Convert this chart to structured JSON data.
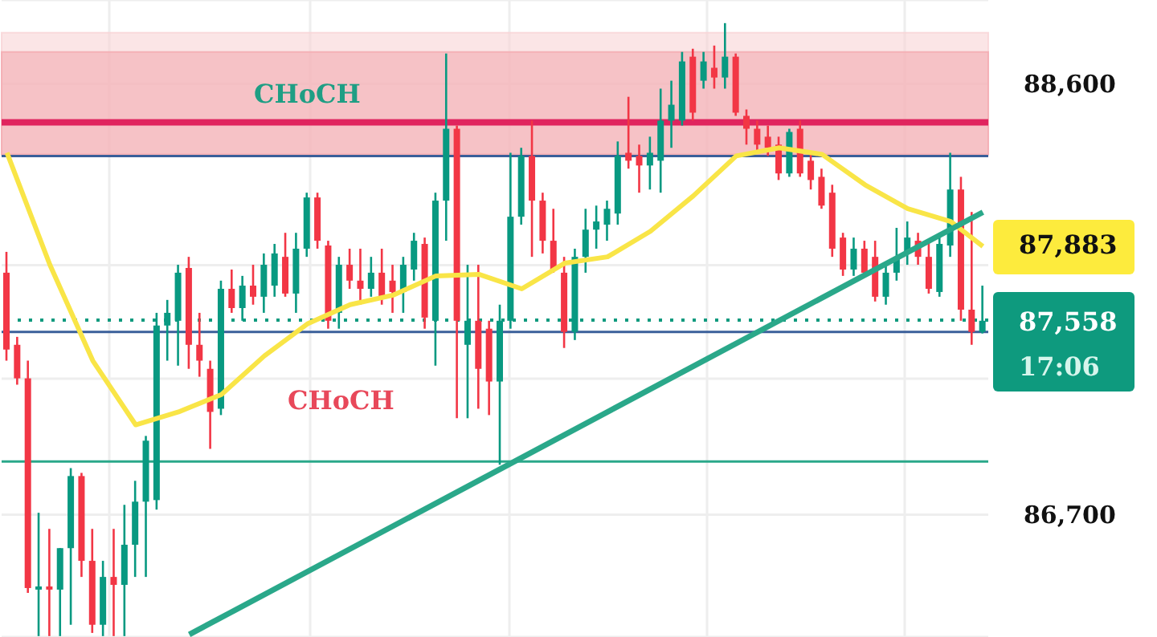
{
  "chart_data": {
    "type": "candlestick",
    "categories": [
      null,
      null,
      null,
      null,
      null,
      null,
      null,
      null,
      null,
      null,
      null,
      null,
      null,
      null,
      null,
      null,
      null,
      null,
      null,
      null,
      null,
      null,
      null,
      null,
      null,
      null,
      null,
      null,
      null,
      null,
      null,
      null,
      null,
      null,
      null,
      null,
      null,
      null,
      null,
      null,
      null,
      null,
      null,
      null,
      null,
      null,
      null,
      null,
      null,
      null,
      null,
      null,
      null,
      null,
      null,
      null,
      null,
      null,
      null,
      null,
      null,
      null,
      null,
      null,
      null,
      null,
      null,
      null,
      null,
      null,
      null,
      null,
      null,
      null,
      null,
      null,
      null,
      null,
      null,
      null,
      null,
      null,
      null,
      null,
      null,
      null,
      null,
      null,
      null,
      null,
      null,
      null
    ],
    "ohlc": [
      [
        87767,
        87859,
        87379,
        87428
      ],
      [
        87449,
        87484,
        87273,
        87301
      ],
      [
        87301,
        87379,
        86355,
        86376
      ],
      [
        86369,
        86708,
        86164,
        86383
      ],
      [
        86383,
        86637,
        86164,
        86369
      ],
      [
        86369,
        86552,
        86164,
        86552
      ],
      [
        86552,
        86905,
        86214,
        86870
      ],
      [
        86870,
        86884,
        86425,
        86496
      ],
      [
        86496,
        86637,
        86178,
        86214
      ],
      [
        86214,
        86496,
        86164,
        86425
      ],
      [
        86425,
        86637,
        86164,
        86390
      ],
      [
        86390,
        86743,
        86164,
        86567
      ],
      [
        86567,
        86849,
        86425,
        86757
      ],
      [
        86757,
        87047,
        86425,
        87026
      ],
      [
        86764,
        87590,
        86722,
        87534
      ],
      [
        87534,
        87647,
        87379,
        87590
      ],
      [
        87555,
        87802,
        87357,
        87767
      ],
      [
        87788,
        87837,
        87343,
        87449
      ],
      [
        87449,
        87590,
        87308,
        87379
      ],
      [
        87343,
        87379,
        86990,
        87153
      ],
      [
        87167,
        87732,
        87139,
        87696
      ],
      [
        87696,
        87781,
        87590,
        87611
      ],
      [
        87611,
        87753,
        87555,
        87710
      ],
      [
        87710,
        87802,
        87626,
        87661
      ],
      [
        87661,
        87852,
        87590,
        87802
      ],
      [
        87710,
        87894,
        87661,
        87852
      ],
      [
        87837,
        87943,
        87661,
        87675
      ],
      [
        87675,
        87943,
        87590,
        87873
      ],
      [
        87873,
        88120,
        87837,
        88099
      ],
      [
        88099,
        88120,
        87873,
        87908
      ],
      [
        87887,
        87908,
        87520,
        87555
      ],
      [
        87590,
        87837,
        87520,
        87802
      ],
      [
        87802,
        87873,
        87696,
        87732
      ],
      [
        87732,
        87873,
        87626,
        87696
      ],
      [
        87696,
        87837,
        87661,
        87767
      ],
      [
        87767,
        87873,
        87626,
        87661
      ],
      [
        87732,
        87802,
        87590,
        87682
      ],
      [
        87682,
        87837,
        87590,
        87802
      ],
      [
        87781,
        87943,
        87732,
        87908
      ],
      [
        87894,
        87922,
        87520,
        87569
      ],
      [
        87555,
        88120,
        87357,
        88085
      ],
      [
        88085,
        88734,
        87908,
        88402
      ],
      [
        88402,
        88416,
        87125,
        87555
      ],
      [
        87449,
        87802,
        87125,
        87555
      ],
      [
        87555,
        87802,
        87167,
        87343
      ],
      [
        87520,
        87555,
        87139,
        87287
      ],
      [
        87287,
        87626,
        86920,
        87555
      ],
      [
        87555,
        88296,
        87520,
        88014
      ],
      [
        88014,
        88318,
        87979,
        88282
      ],
      [
        88282,
        88438,
        87837,
        88085
      ],
      [
        88085,
        88120,
        87852,
        87908
      ],
      [
        87908,
        88049,
        87767,
        87781
      ],
      [
        87767,
        87837,
        87435,
        87506
      ],
      [
        87506,
        87873,
        87470,
        87837
      ],
      [
        87837,
        88049,
        87767,
        87957
      ],
      [
        87957,
        88063,
        87873,
        87993
      ],
      [
        87979,
        88085,
        87908,
        88049
      ],
      [
        88028,
        88346,
        87979,
        88282
      ],
      [
        88296,
        88543,
        88226,
        88261
      ],
      [
        88282,
        88332,
        88120,
        88240
      ],
      [
        88240,
        88367,
        88134,
        88296
      ],
      [
        88261,
        88579,
        88120,
        88438
      ],
      [
        88438,
        88614,
        88318,
        88508
      ],
      [
        88438,
        88741,
        88416,
        88699
      ],
      [
        88720,
        88755,
        88438,
        88473
      ],
      [
        88614,
        88741,
        88579,
        88699
      ],
      [
        88671,
        88769,
        88579,
        88628
      ],
      [
        88628,
        88868,
        88579,
        88720
      ],
      [
        88720,
        88734,
        88459,
        88473
      ],
      [
        88459,
        88487,
        88332,
        88402
      ],
      [
        88402,
        88438,
        88296,
        88332
      ],
      [
        88367,
        88416,
        88282,
        88318
      ],
      [
        88332,
        88367,
        88176,
        88205
      ],
      [
        88205,
        88402,
        88190,
        88388
      ],
      [
        88402,
        88438,
        88190,
        88205
      ],
      [
        88261,
        88296,
        88134,
        88176
      ],
      [
        88190,
        88226,
        88049,
        88063
      ],
      [
        88120,
        88155,
        87837,
        87873
      ],
      [
        87922,
        87943,
        87753,
        87781
      ],
      [
        87781,
        87922,
        87753,
        87873
      ],
      [
        87873,
        87908,
        87753,
        87767
      ],
      [
        87837,
        87908,
        87640,
        87661
      ],
      [
        87661,
        87816,
        87626,
        87767
      ],
      [
        87767,
        87965,
        87732,
        87837
      ],
      [
        87852,
        87993,
        87802,
        87922
      ],
      [
        87908,
        87943,
        87802,
        87837
      ],
      [
        87837,
        87908,
        87675,
        87696
      ],
      [
        87682,
        87943,
        87661,
        87894
      ],
      [
        87887,
        88296,
        87837,
        88134
      ],
      [
        88134,
        88190,
        87555,
        87604
      ],
      [
        87604,
        88035,
        87449,
        87506
      ],
      [
        87506,
        87710,
        87499,
        87555
      ]
    ],
    "series": [
      {
        "type": "line",
        "color": "#f9e547",
        "values": [
          88296,
          null,
          null,
          null,
          87802,
          null,
          null,
          null,
          87379,
          null,
          null,
          null,
          87096,
          null,
          null,
          null,
          87153,
          null,
          null,
          null,
          87230,
          null,
          null,
          null,
          87400,
          null,
          null,
          null,
          87541,
          null,
          null,
          null,
          87626,
          null,
          null,
          null,
          87668,
          null,
          null,
          null,
          87753,
          null,
          null,
          null,
          87760,
          null,
          null,
          null,
          87696,
          null,
          null,
          null,
          87809,
          null,
          null,
          null,
          87837,
          null,
          null,
          null,
          87950,
          null,
          null,
          null,
          88106,
          null,
          null,
          null,
          88282,
          null,
          null,
          null,
          88318,
          null,
          null,
          null,
          88289,
          null,
          null,
          null,
          88155,
          null,
          null,
          null,
          88049,
          null,
          null,
          null,
          87993,
          null,
          null,
          87883
        ]
      },
      {
        "type": "line",
        "color": "#2aa88a",
        "values": [
          null,
          null,
          null,
          null,
          null,
          null,
          null,
          null,
          null,
          null,
          null,
          null,
          null,
          null,
          null,
          null,
          null,
          86171,
          null,
          null,
          null,
          null,
          null,
          null,
          null,
          null,
          null,
          null,
          null,
          null,
          null,
          null,
          null,
          null,
          null,
          null,
          null,
          null,
          null,
          null,
          null,
          null,
          null,
          null,
          null,
          null,
          null,
          null,
          null,
          null,
          null,
          null,
          null,
          null,
          null,
          null,
          null,
          null,
          null,
          null,
          null,
          null,
          null,
          null,
          null,
          null,
          null,
          null,
          null,
          null,
          null,
          null,
          null,
          null,
          null,
          null,
          null,
          null,
          null,
          null,
          null,
          null,
          null,
          null,
          null,
          null,
          null,
          null,
          null,
          null,
          null,
          88034
        ]
      }
    ],
    "ylim": [
      86160,
      88970
    ],
    "yticks": [
      {
        "value": 88600,
        "label": "88,600"
      },
      {
        "value": 87800,
        "label": null
      },
      {
        "value": 87300,
        "label": null
      },
      {
        "value": 86700,
        "label": "86,700"
      }
    ],
    "grid": true,
    "bands": [
      {
        "axis": "y",
        "from": 88289,
        "to": 88826,
        "color": "#f9d3d6"
      },
      {
        "axis": "y",
        "from": 88289,
        "to": 88741,
        "color": "#f4aab0"
      }
    ],
    "ref_lines": [
      {
        "axis": "y",
        "value": 88430,
        "color": "#e0245e"
      },
      {
        "axis": "y",
        "value": 88282,
        "color": "#3a5f9a"
      },
      {
        "axis": "y",
        "value": 87506,
        "color": "#3a5f9a"
      },
      {
        "axis": "y",
        "value": 86934,
        "color": "#2aa88a"
      },
      {
        "axis": "y",
        "value": 87558,
        "color": "#0e9a7e",
        "line_style": "dotted",
        "label": "87,558"
      }
    ],
    "annotations": [
      "CHoCH",
      "CHoCH",
      "87,883",
      "17:06"
    ]
  }
}
